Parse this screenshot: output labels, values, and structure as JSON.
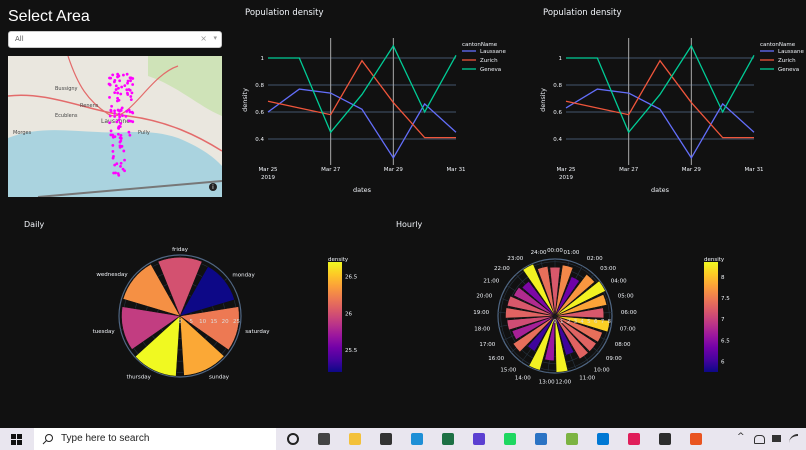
{
  "sidebar": {
    "title": "Select Area",
    "dropdown": {
      "value": "All",
      "clear_icon": "×",
      "arrow_icon": "▾"
    },
    "map": {
      "labels": [
        "Bussigny",
        "Renens",
        "Ecublens",
        "Lausanne",
        "Pully",
        "Morges"
      ],
      "info_icon": "i",
      "point_color": "#ff00ff"
    }
  },
  "line_charts": [
    {
      "title": "Population density",
      "legend_title": "cantonName",
      "xlabel": "dates",
      "ylabel": "density"
    },
    {
      "title": "Population density",
      "legend_title": "cantonName",
      "xlabel": "dates",
      "ylabel": "density"
    }
  ],
  "daily": {
    "title": "Daily",
    "colorbar_title": "density"
  },
  "hourly": {
    "title": "Hourly",
    "colorbar_title": "density"
  },
  "chart_data": [
    {
      "type": "line",
      "title": "Population density",
      "xlabel": "dates",
      "ylabel": "density",
      "x": [
        "Mar 25",
        "Mar 26",
        "Mar 27",
        "Mar 28",
        "Mar 29",
        "Mar 30",
        "Mar 31"
      ],
      "x_ticks": [
        "Mar 25\n2019",
        "Mar 27",
        "Mar 29",
        "Mar 31"
      ],
      "y_ticks": [
        0.4,
        0.6,
        0.8,
        1
      ],
      "ylim": [
        0.2,
        1.15
      ],
      "legend_title": "cantonName",
      "legend_position": "top-right",
      "series": [
        {
          "name": "Laussane",
          "color": "#636efa",
          "values": [
            0.6,
            0.77,
            0.74,
            0.62,
            0.26,
            0.66,
            0.45
          ]
        },
        {
          "name": "Zurich",
          "color": "#ef553b",
          "values": [
            0.68,
            0.63,
            0.58,
            0.98,
            0.67,
            0.41,
            0.41
          ]
        },
        {
          "name": "Geneva",
          "color": "#00cc96",
          "values": [
            1.0,
            1.0,
            0.45,
            0.73,
            1.09,
            0.6,
            1.02
          ]
        }
      ]
    },
    {
      "type": "line",
      "title": "Population density",
      "xlabel": "dates",
      "ylabel": "density",
      "x": [
        "Mar 25",
        "Mar 26",
        "Mar 27",
        "Mar 28",
        "Mar 29",
        "Mar 30",
        "Mar 31"
      ],
      "x_ticks": [
        "Mar 25\n2019",
        "Mar 27",
        "Mar 29",
        "Mar 31"
      ],
      "y_ticks": [
        0.4,
        0.6,
        0.8,
        1
      ],
      "ylim": [
        0.2,
        1.15
      ],
      "legend_title": "cantonName",
      "legend_position": "top-right",
      "series": [
        {
          "name": "Laussane",
          "color": "#636efa",
          "values": [
            0.63,
            0.77,
            0.74,
            0.62,
            0.26,
            0.66,
            0.45
          ]
        },
        {
          "name": "Zurich",
          "color": "#ef553b",
          "values": [
            0.68,
            0.63,
            0.58,
            0.98,
            0.67,
            0.41,
            0.41
          ]
        },
        {
          "name": "Geneva",
          "color": "#00cc96",
          "values": [
            1.0,
            1.0,
            0.45,
            0.73,
            1.09,
            0.6,
            1.02
          ]
        }
      ]
    },
    {
      "type": "barpolar",
      "title": "Daily",
      "theta": [
        "saturday",
        "monday",
        "friday",
        "wednesday",
        "tuesday",
        "thursday",
        "sunday"
      ],
      "values": [
        26.2,
        25.2,
        26.0,
        26.3,
        25.9,
        26.7,
        26.4
      ],
      "radial_ticks": [
        0,
        5,
        10,
        15,
        20,
        25
      ],
      "radial_range": [
        0,
        27
      ],
      "colorscale": "Plasma",
      "colorbar": {
        "title": "density",
        "range": [
          25.2,
          26.7
        ],
        "ticks": [
          25.5,
          26,
          26.5
        ]
      }
    },
    {
      "type": "barpolar",
      "title": "Hourly",
      "theta": [
        "00:00",
        "01:00",
        "02:00",
        "03:00",
        "04:00",
        "05:00",
        "06:00",
        "07:00",
        "08:00",
        "09:00",
        "10:00",
        "11:00",
        "12:00",
        "13:00",
        "14:00",
        "15:00",
        "16:00",
        "17:00",
        "18:00",
        "19:00",
        "20:00",
        "21:00",
        "22:00",
        "23:00",
        "24:00"
      ],
      "values": [
        7.2,
        7.6,
        6.3,
        7.7,
        8.3,
        7.8,
        7.2,
        8.1,
        7.4,
        7.3,
        7.3,
        6.0,
        8.3,
        6.6,
        8.3,
        6.0,
        7.4,
        6.7,
        7.1,
        7.3,
        7.2,
        6.8,
        6.4,
        8.3,
        7.4
      ],
      "radial_ticks": [
        0,
        1,
        2,
        3,
        4,
        5,
        6,
        7,
        8
      ],
      "radial_range": [
        0,
        8.4
      ],
      "colorscale": "Plasma",
      "colorbar": {
        "title": "density",
        "range": [
          5.75,
          8.35
        ],
        "ticks": [
          6,
          6.5,
          7,
          7.5,
          8
        ]
      }
    }
  ],
  "taskbar": {
    "search_placeholder": "Type here to search",
    "icons": [
      {
        "name": "cortana-icon",
        "color": "#222222"
      },
      {
        "name": "task-view-icon",
        "color": "#444444"
      },
      {
        "name": "file-explorer-icon",
        "color": "#f3c13a"
      },
      {
        "name": "store-icon",
        "color": "#333333"
      },
      {
        "name": "edge-icon",
        "color": "#1e8fd6"
      },
      {
        "name": "excel-icon",
        "color": "#1d7044"
      },
      {
        "name": "app-icon",
        "color": "#5b3fd1"
      },
      {
        "name": "spotify-icon",
        "color": "#1ed760"
      },
      {
        "name": "python-icon",
        "color": "#2b73c4"
      },
      {
        "name": "notepad-icon",
        "color": "#7cb342"
      },
      {
        "name": "vscode-icon",
        "color": "#0078d4"
      },
      {
        "name": "slack-icon",
        "color": "#e01e5a"
      },
      {
        "name": "terminal-icon",
        "color": "#2d2d2d"
      },
      {
        "name": "ubuntu-icon",
        "color": "#e95420"
      }
    ],
    "tray": {
      "chevron": "^"
    }
  }
}
